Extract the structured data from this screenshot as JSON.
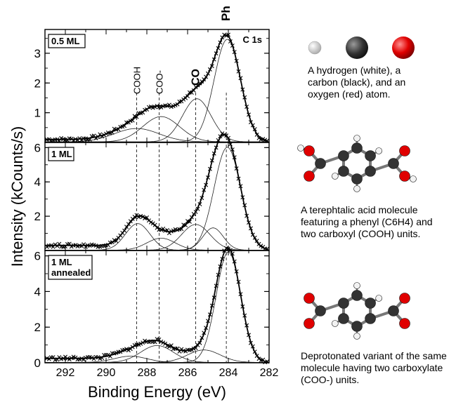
{
  "chart_data": {
    "type": "line",
    "xlabel": "Binding Energy (eV)",
    "ylabel": "Intensity (kCounts/s)",
    "xlim": [
      293,
      282
    ],
    "x_ticks": [
      "292",
      "290",
      "288",
      "286",
      "284",
      "282"
    ],
    "reference_lines_eV": {
      "COOH": 288.5,
      "COO-": 287.4,
      "CO": 285.6,
      "Ph": 284.1
    },
    "peak_labels": [
      "COOH",
      "COO-",
      "CO",
      "Ph"
    ],
    "panels": [
      {
        "label": "0.5 ML",
        "corner_label": "C 1s",
        "ylim": [
          0,
          3.8
        ],
        "y_ticks": [
          "1",
          "2",
          "3"
        ],
        "components": [
          {
            "center": 284.05,
            "height": 3.45,
            "width": 0.65
          },
          {
            "center": 285.55,
            "height": 1.45,
            "width": 0.7
          },
          {
            "center": 287.3,
            "height": 0.85,
            "width": 0.9
          },
          {
            "center": 288.5,
            "height": 0.45,
            "width": 1.1
          }
        ],
        "background": 0.1
      },
      {
        "label": "1 ML",
        "ylim": [
          0,
          6.3
        ],
        "y_ticks": [
          "2",
          "4",
          "6"
        ],
        "components": [
          {
            "center": 284.05,
            "height": 6.0,
            "width": 0.65
          },
          {
            "center": 284.75,
            "height": 1.3,
            "width": 0.5
          },
          {
            "center": 285.6,
            "height": 1.5,
            "width": 0.7
          },
          {
            "center": 287.3,
            "height": 0.7,
            "width": 0.7
          },
          {
            "center": 288.45,
            "height": 1.55,
            "width": 0.6
          }
        ],
        "background": 0.3
      },
      {
        "label": "1 ML annealed",
        "ylim": [
          0,
          6.3
        ],
        "y_ticks": [
          "0",
          "2",
          "4",
          "6"
        ],
        "components": [
          {
            "center": 284.0,
            "height": 6.2,
            "width": 0.6
          },
          {
            "center": 285.2,
            "height": 0.7,
            "width": 0.8
          },
          {
            "center": 287.5,
            "height": 0.95,
            "width": 0.8
          },
          {
            "center": 288.8,
            "height": 0.35,
            "width": 0.8
          }
        ],
        "background": 0.25
      }
    ]
  },
  "legend": {
    "atoms_caption": "A hydrogen (white), a carbon (black), and an oxygen (red) atom.",
    "acid_caption": "A terephtalic acid molecule featuring a phenyl (C6H4) and two carboxyl (COOH) units.",
    "deprot_caption": "Deprotonated variant of the same molecule having two carboxylate (COO-) units.",
    "colors": {
      "hydrogen": "#f2f2f2",
      "carbon": "#333333",
      "oxygen": "#e00000"
    }
  }
}
